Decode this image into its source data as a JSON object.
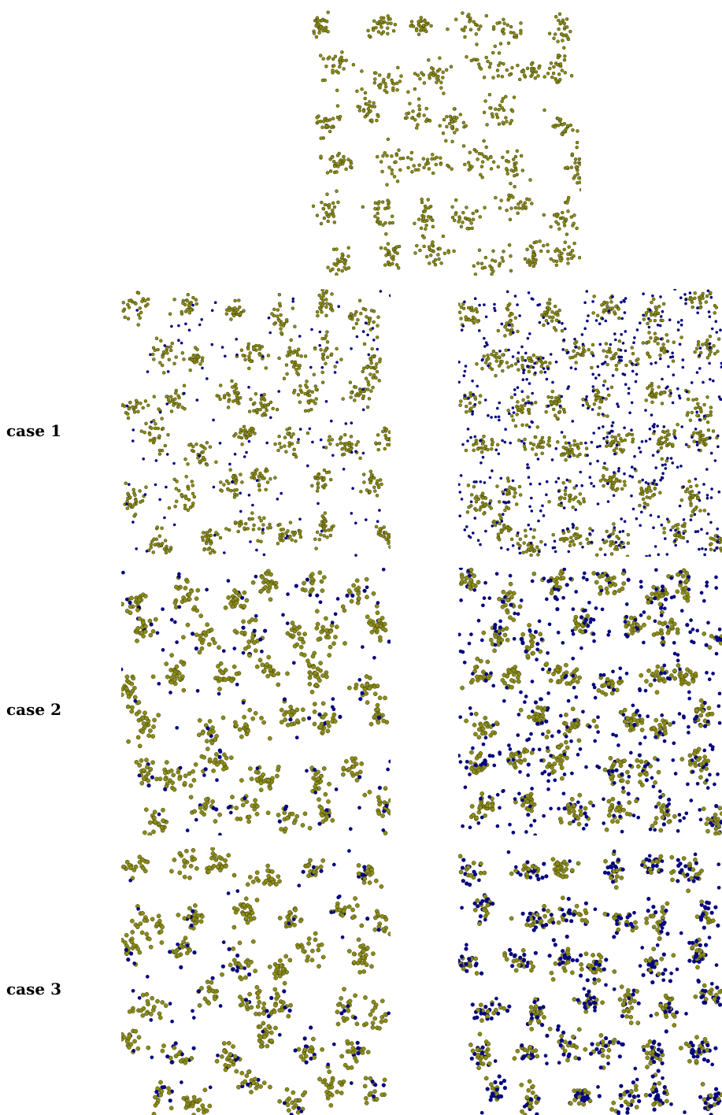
{
  "figure": {
    "colors": {
      "cluster_particle": "#8c8c1a",
      "cluster_outline": "#3a3a05",
      "tracer_particle": "#06067f"
    },
    "rows": [
      {
        "label": "case 1"
      },
      {
        "label": "case 2"
      },
      {
        "label": "case 3"
      }
    ]
  }
}
